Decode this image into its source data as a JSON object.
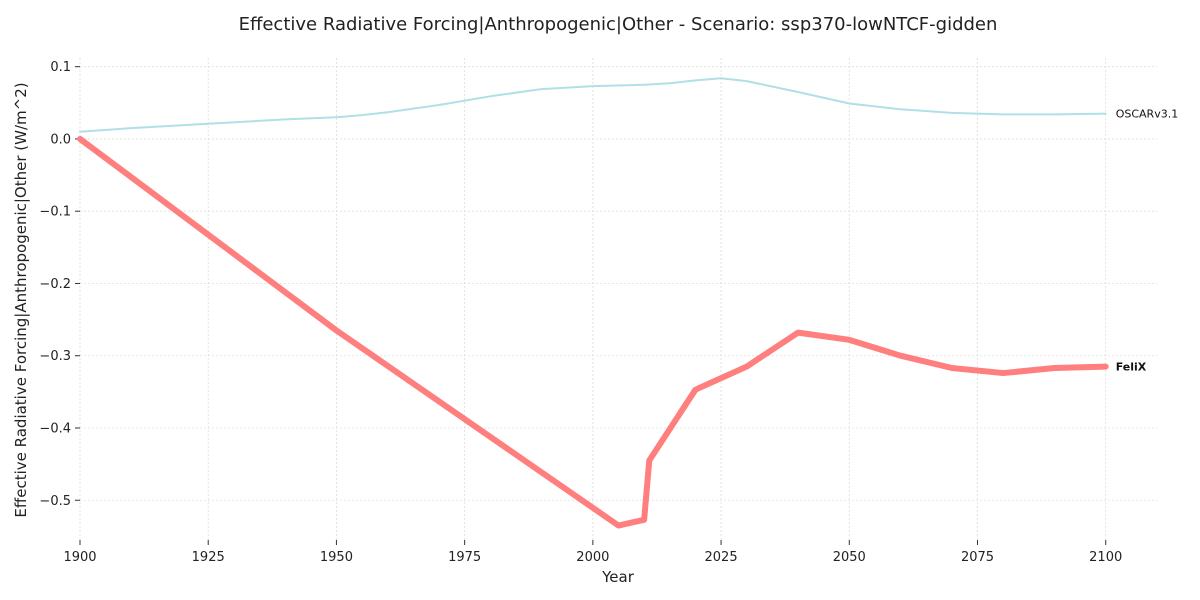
{
  "chart_data": {
    "type": "line",
    "title": "Effective Radiative Forcing|Anthropogenic|Other - Scenario: ssp370-lowNTCF-gidden",
    "xlabel": "Year",
    "ylabel": "Effective Radiative Forcing|Anthropogenic|Other (W/m^2)",
    "xlim": [
      1900,
      2110
    ],
    "ylim": [
      -0.555,
      0.112
    ],
    "xticks": [
      1900,
      1925,
      1950,
      1975,
      2000,
      2025,
      2050,
      2075,
      2100
    ],
    "yticks": [
      0.1,
      0.0,
      -0.1,
      -0.2,
      -0.3,
      -0.4,
      -0.5
    ],
    "ytick_labels": [
      "0.1",
      "0.0",
      "−0.1",
      "−0.2",
      "−0.3",
      "−0.4",
      "−0.5"
    ],
    "grid": true,
    "legend": "labels at line ends",
    "series": [
      {
        "name": "OSCARv3.1",
        "color": "#b0e0e6",
        "label_weight": "normal",
        "line_width": 2,
        "x": [
          1900,
          1910,
          1925,
          1940,
          1950,
          1955,
          1960,
          1970,
          1980,
          1990,
          2000,
          2010,
          2015,
          2020,
          2025,
          2030,
          2040,
          2050,
          2060,
          2070,
          2080,
          2090,
          2100
        ],
        "y": [
          0.01,
          0.015,
          0.021,
          0.027,
          0.03,
          0.033,
          0.037,
          0.047,
          0.059,
          0.069,
          0.073,
          0.075,
          0.077,
          0.081,
          0.084,
          0.08,
          0.065,
          0.049,
          0.041,
          0.036,
          0.034,
          0.034,
          0.035
        ]
      },
      {
        "name": "FeliX",
        "color": "#ff7f7f",
        "label_weight": "bold",
        "line_width": 6,
        "x": [
          1900,
          1950,
          2005,
          2010,
          2011,
          2020,
          2030,
          2040,
          2050,
          2060,
          2070,
          2080,
          2090,
          2100
        ],
        "y": [
          0.0,
          -0.265,
          -0.535,
          -0.527,
          -0.445,
          -0.347,
          -0.315,
          -0.268,
          -0.278,
          -0.3,
          -0.317,
          -0.324,
          -0.317,
          -0.315
        ]
      }
    ]
  }
}
